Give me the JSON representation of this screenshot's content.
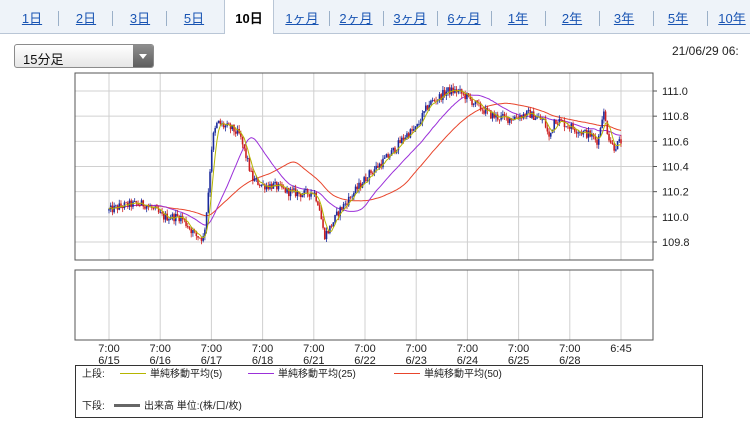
{
  "tabs": [
    "1日",
    "2日",
    "3日",
    "5日",
    "10日",
    "1ヶ月",
    "2ヶ月",
    "3ヶ月",
    "6ヶ月",
    "1年",
    "2年",
    "3年",
    "5年",
    "10年"
  ],
  "active_tab": "10日",
  "interval_select": {
    "value": "15分足"
  },
  "timestamp": "21/06/29 06:",
  "legend": {
    "upper_label": "上段:",
    "ma5": "単純移動平均(5)",
    "ma25": "単純移動平均(25)",
    "ma50": "単純移動平均(50)",
    "lower_label": "下段:",
    "volume": "出来高 単位:(株/口/枚)"
  },
  "colors": {
    "ma5": "#b5b500",
    "ma25": "#9b30d9",
    "ma50": "#e8452c",
    "candle_up": "#1a2a9c",
    "candle_down": "#cc1f1f",
    "volume": "#666666",
    "grid": "#d0d0d0",
    "tab_link": "#1a55b3"
  },
  "chart_data": {
    "type": "candlestick-line",
    "title": "",
    "y_axis": {
      "ticks": [
        109.8,
        110.0,
        110.2,
        110.4,
        110.6,
        110.8,
        111.0
      ],
      "range": [
        109.7,
        111.1
      ]
    },
    "x_axis": {
      "ticks": [
        {
          "time": "7:00",
          "date": "6/15"
        },
        {
          "time": "7:00",
          "date": "6/16"
        },
        {
          "time": "7:00",
          "date": "6/17"
        },
        {
          "time": "7:00",
          "date": "6/18"
        },
        {
          "time": "7:00",
          "date": "6/21"
        },
        {
          "time": "7:00",
          "date": "6/22"
        },
        {
          "time": "7:00",
          "date": "6/23"
        },
        {
          "time": "7:00",
          "date": "6/24"
        },
        {
          "time": "7:00",
          "date": "6/25"
        },
        {
          "time": "7:00",
          "date": "6/28"
        },
        {
          "time": "6:45",
          "date": ""
        }
      ]
    },
    "price_path": [
      [
        0,
        110.05
      ],
      [
        0.2,
        110.08
      ],
      [
        0.45,
        110.1
      ],
      [
        0.7,
        110.1
      ],
      [
        0.9,
        110.05
      ],
      [
        1.05,
        110.0
      ],
      [
        1.4,
        110.0
      ],
      [
        1.7,
        109.85
      ],
      [
        1.85,
        109.83
      ],
      [
        1.92,
        110.1
      ],
      [
        2.02,
        110.62
      ],
      [
        2.12,
        110.75
      ],
      [
        2.25,
        110.72
      ],
      [
        2.4,
        110.7
      ],
      [
        2.55,
        110.65
      ],
      [
        2.7,
        110.45
      ],
      [
        2.8,
        110.3
      ],
      [
        3.0,
        110.25
      ],
      [
        3.2,
        110.25
      ],
      [
        3.5,
        110.2
      ],
      [
        3.8,
        110.18
      ],
      [
        4.0,
        110.2
      ],
      [
        4.1,
        110.1
      ],
      [
        4.2,
        109.85
      ],
      [
        4.3,
        109.9
      ],
      [
        4.5,
        110.05
      ],
      [
        4.7,
        110.15
      ],
      [
        4.9,
        110.25
      ],
      [
        5.1,
        110.35
      ],
      [
        5.3,
        110.42
      ],
      [
        5.5,
        110.5
      ],
      [
        5.8,
        110.65
      ],
      [
        6.0,
        110.7
      ],
      [
        6.25,
        110.9
      ],
      [
        6.45,
        110.95
      ],
      [
        6.6,
        111.0
      ],
      [
        6.8,
        111.0
      ],
      [
        7.0,
        110.95
      ],
      [
        7.2,
        110.88
      ],
      [
        7.5,
        110.8
      ],
      [
        7.8,
        110.78
      ],
      [
        8.0,
        110.8
      ],
      [
        8.2,
        110.82
      ],
      [
        8.5,
        110.76
      ],
      [
        8.6,
        110.62
      ],
      [
        8.7,
        110.78
      ],
      [
        9.0,
        110.72
      ],
      [
        9.2,
        110.68
      ],
      [
        9.4,
        110.65
      ],
      [
        9.55,
        110.6
      ],
      [
        9.65,
        110.85
      ],
      [
        9.75,
        110.65
      ],
      [
        9.85,
        110.55
      ],
      [
        10.0,
        110.6
      ]
    ],
    "volume_panel": "no data shown"
  }
}
